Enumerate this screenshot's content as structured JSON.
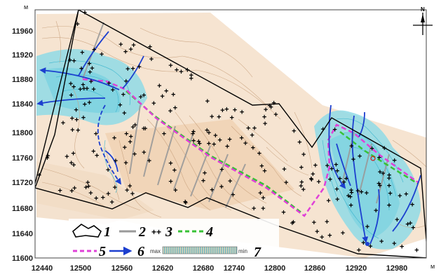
{
  "units": {
    "y_top": "м",
    "x_right": "м"
  },
  "compass": {
    "north_label": "N"
  },
  "y_ticks": [
    "11960",
    "11920",
    "11880",
    "11840",
    "11800",
    "11760",
    "11720",
    "11680",
    "11640",
    "11600"
  ],
  "x_ticks": [
    "12440",
    "12500",
    "12560",
    "12620",
    "12680",
    "12740",
    "12800",
    "12860",
    "12920",
    "12980"
  ],
  "legend": {
    "items": [
      "1",
      "2",
      "3",
      "4",
      "5",
      "6",
      "7"
    ],
    "gradient": {
      "max_label": "max",
      "min_label": "min"
    }
  },
  "colors": {
    "background_fill": "#f6e3cf",
    "contour_brown": "#c9a27e",
    "contour_cyan": "#3fb7cf",
    "low_zone": "#8fdbe6",
    "boundary": "#000000",
    "profile_gray": "#9a9a9a",
    "line_green": "#37c237",
    "line_magenta": "#e040d8",
    "flow_blue": "#1c3fcf"
  }
}
